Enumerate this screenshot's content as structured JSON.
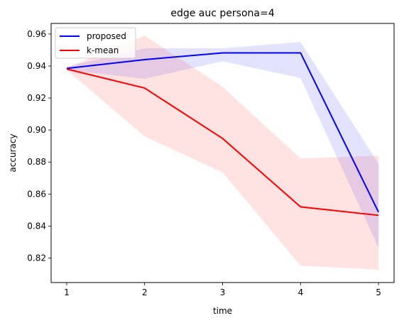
{
  "chart_data": {
    "type": "line",
    "title": "edge auc persona=4",
    "xlabel": "time",
    "ylabel": "accuracy",
    "x": [
      1,
      2,
      3,
      4,
      5
    ],
    "xlim": [
      0.8,
      5.2
    ],
    "ylim": [
      0.8047,
      0.9666
    ],
    "xticks": [
      1,
      2,
      3,
      4,
      5
    ],
    "yticks": [
      0.82,
      0.84,
      0.86,
      0.88,
      0.9,
      0.92,
      0.94,
      0.96
    ],
    "ytick_labels": [
      "0.82",
      "0.84",
      "0.86",
      "0.88",
      "0.90",
      "0.92",
      "0.94",
      "0.96"
    ],
    "grid": false,
    "legend_position": "upper-left",
    "series": [
      {
        "name": "proposed",
        "color": "#0000ff",
        "band_color": "#0000ff",
        "values": [
          0.9385,
          0.944,
          0.9482,
          0.9482,
          0.8487
        ],
        "band_lower": [
          0.9375,
          0.932,
          0.943,
          0.9325,
          0.8265
        ],
        "band_upper": [
          0.9395,
          0.951,
          0.951,
          0.955,
          0.879
        ]
      },
      {
        "name": "k-mean",
        "color": "#ff0000",
        "band_color": "#ff0000",
        "values": [
          0.9381,
          0.9262,
          0.8947,
          0.852,
          0.8467
        ],
        "band_lower": [
          0.9375,
          0.896,
          0.8735,
          0.8152,
          0.8128
        ],
        "band_upper": [
          0.9388,
          0.959,
          0.927,
          0.8822,
          0.884
        ]
      }
    ]
  }
}
